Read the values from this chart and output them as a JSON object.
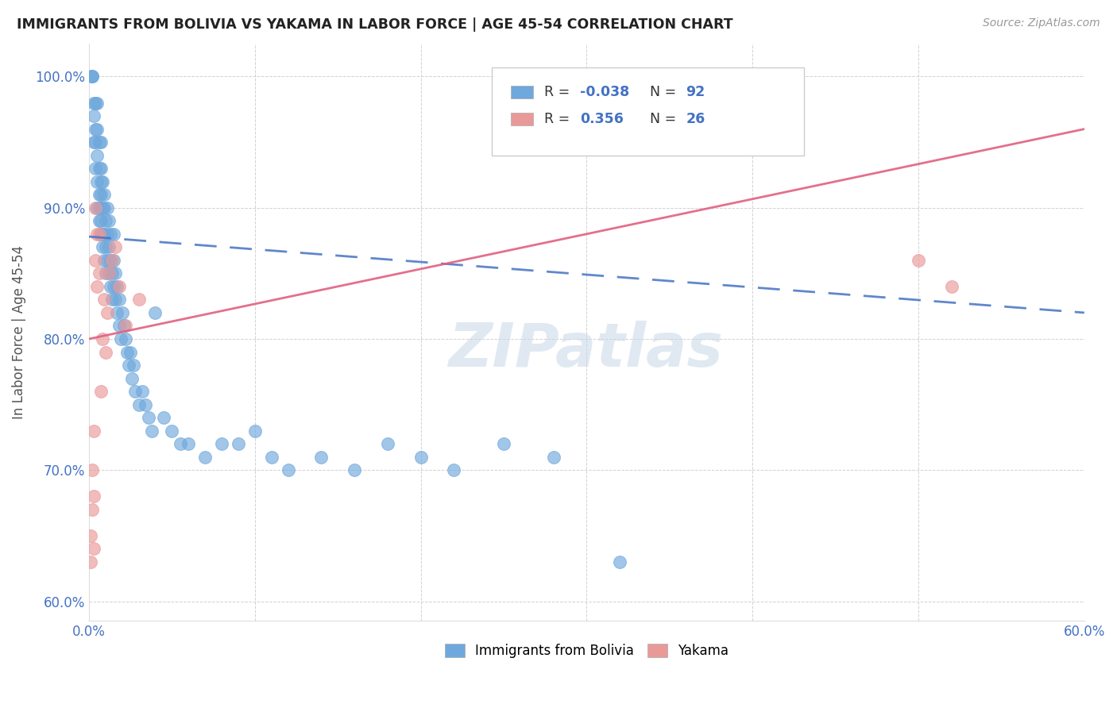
{
  "title": "IMMIGRANTS FROM BOLIVIA VS YAKAMA IN LABOR FORCE | AGE 45-54 CORRELATION CHART",
  "source": "Source: ZipAtlas.com",
  "ylabel": "In Labor Force | Age 45-54",
  "xlim": [
    0.0,
    0.6
  ],
  "ylim": [
    0.585,
    1.025
  ],
  "xtick_positions": [
    0.0,
    0.1,
    0.2,
    0.3,
    0.4,
    0.5,
    0.6
  ],
  "xtick_labels": [
    "0.0%",
    "",
    "",
    "",
    "",
    "",
    "60.0%"
  ],
  "ytick_positions": [
    0.6,
    0.7,
    0.8,
    0.9,
    1.0
  ],
  "ytick_labels": [
    "60.0%",
    "70.0%",
    "80.0%",
    "90.0%",
    "100.0%"
  ],
  "bolivia_color": "#6fa8dc",
  "yakama_color": "#ea9999",
  "bolivia_line_color": "#4472c4",
  "yakama_line_color": "#e06080",
  "bolivia_R": -0.038,
  "bolivia_N": 92,
  "yakama_R": 0.356,
  "yakama_N": 26,
  "bolivia_line_x0": 0.0,
  "bolivia_line_y0": 0.878,
  "bolivia_line_x1": 0.6,
  "bolivia_line_y1": 0.82,
  "yakama_line_x0": 0.0,
  "yakama_line_y0": 0.8,
  "yakama_line_x1": 0.6,
  "yakama_line_y1": 0.96,
  "bolivia_x": [
    0.0015,
    0.002,
    0.002,
    0.003,
    0.003,
    0.003,
    0.004,
    0.004,
    0.004,
    0.004,
    0.005,
    0.005,
    0.005,
    0.005,
    0.005,
    0.006,
    0.006,
    0.006,
    0.006,
    0.006,
    0.007,
    0.007,
    0.007,
    0.007,
    0.007,
    0.007,
    0.007,
    0.008,
    0.008,
    0.008,
    0.008,
    0.009,
    0.009,
    0.009,
    0.009,
    0.01,
    0.01,
    0.01,
    0.011,
    0.011,
    0.011,
    0.012,
    0.012,
    0.012,
    0.013,
    0.013,
    0.013,
    0.014,
    0.014,
    0.015,
    0.015,
    0.015,
    0.016,
    0.016,
    0.017,
    0.017,
    0.018,
    0.018,
    0.019,
    0.02,
    0.021,
    0.022,
    0.023,
    0.024,
    0.025,
    0.026,
    0.027,
    0.028,
    0.03,
    0.032,
    0.034,
    0.036,
    0.038,
    0.04,
    0.045,
    0.05,
    0.055,
    0.06,
    0.07,
    0.08,
    0.09,
    0.1,
    0.11,
    0.12,
    0.14,
    0.16,
    0.18,
    0.2,
    0.22,
    0.25,
    0.28,
    0.32
  ],
  "bolivia_y": [
    1.0,
    1.0,
    1.0,
    0.95,
    0.97,
    0.98,
    0.93,
    0.95,
    0.96,
    0.98,
    0.9,
    0.92,
    0.94,
    0.96,
    0.98,
    0.89,
    0.9,
    0.91,
    0.93,
    0.95,
    0.88,
    0.89,
    0.9,
    0.91,
    0.92,
    0.93,
    0.95,
    0.87,
    0.88,
    0.9,
    0.92,
    0.86,
    0.88,
    0.9,
    0.91,
    0.85,
    0.87,
    0.89,
    0.86,
    0.88,
    0.9,
    0.85,
    0.87,
    0.89,
    0.84,
    0.86,
    0.88,
    0.83,
    0.85,
    0.84,
    0.86,
    0.88,
    0.83,
    0.85,
    0.82,
    0.84,
    0.81,
    0.83,
    0.8,
    0.82,
    0.81,
    0.8,
    0.79,
    0.78,
    0.79,
    0.77,
    0.78,
    0.76,
    0.75,
    0.76,
    0.75,
    0.74,
    0.73,
    0.82,
    0.74,
    0.73,
    0.72,
    0.72,
    0.71,
    0.72,
    0.72,
    0.73,
    0.71,
    0.7,
    0.71,
    0.7,
    0.72,
    0.71,
    0.7,
    0.72,
    0.71,
    0.63
  ],
  "yakama_x": [
    0.001,
    0.001,
    0.002,
    0.002,
    0.003,
    0.003,
    0.003,
    0.004,
    0.004,
    0.005,
    0.005,
    0.006,
    0.006,
    0.007,
    0.008,
    0.009,
    0.01,
    0.011,
    0.012,
    0.014,
    0.016,
    0.018,
    0.022,
    0.03,
    0.5,
    0.52
  ],
  "yakama_y": [
    0.65,
    0.63,
    0.67,
    0.7,
    0.64,
    0.68,
    0.73,
    0.86,
    0.9,
    0.84,
    0.88,
    0.85,
    0.88,
    0.76,
    0.8,
    0.83,
    0.79,
    0.82,
    0.85,
    0.86,
    0.87,
    0.84,
    0.81,
    0.83,
    0.86,
    0.84
  ],
  "watermark_text": "ZIPatlas",
  "watermark_color": "#c8d8e8"
}
